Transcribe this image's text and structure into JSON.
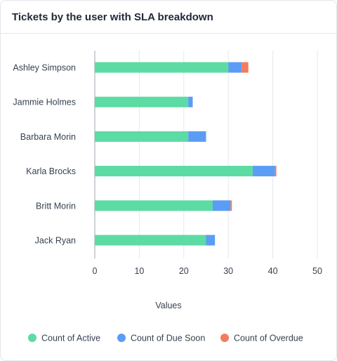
{
  "card": {
    "title": "Tickets by the user with SLA breakdown"
  },
  "chart_data": {
    "type": "bar",
    "orientation": "horizontal",
    "stacked": true,
    "categories": [
      "Ashley Simpson",
      "Jammie Holmes",
      "Barbara Morin",
      "Karla Brocks",
      "Britt Morin",
      "Jack Ryan"
    ],
    "series": [
      {
        "name": "Count of Active",
        "color": "#5cdba4",
        "values": [
          30,
          21,
          21,
          35.5,
          26.5,
          25
        ]
      },
      {
        "name": "Count of Due Soon",
        "color": "#5b9cf6",
        "values": [
          3,
          1,
          4,
          5,
          4,
          2
        ]
      },
      {
        "name": "Count of Overdue",
        "color": "#f47c5c",
        "values": [
          1.5,
          0,
          0,
          0.3,
          0.3,
          0
        ]
      }
    ],
    "xlabel": "Values",
    "ylabel": "",
    "xlim": [
      0,
      50
    ],
    "xticks": [
      0,
      10,
      20,
      30,
      40,
      50
    ],
    "grid": true,
    "legend": "bottom"
  }
}
